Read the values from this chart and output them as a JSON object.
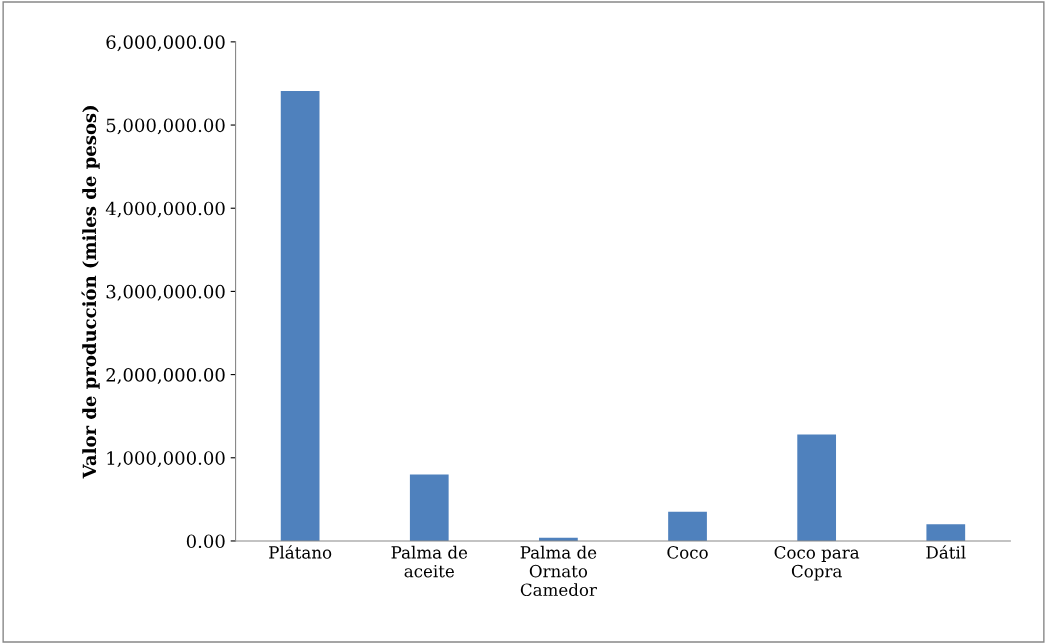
{
  "chart_data": {
    "type": "bar",
    "ylabel": "Valor de producción (miles de pesos)",
    "categories": [
      "Plátano",
      "Palma de\naceite",
      "Palma de\nOrnato\nCamedor",
      "Coco",
      "Coco para\nCopra",
      "Dátil"
    ],
    "values": [
      5410000,
      800000,
      40000,
      350000,
      1280000,
      200000
    ],
    "color": "#4f81bd",
    "ylim": [
      0,
      6000000
    ],
    "yticks": [
      {
        "value": 0,
        "label": "0.00"
      },
      {
        "value": 1000000,
        "label": "1,000,000.00"
      },
      {
        "value": 2000000,
        "label": "2,000,000.00"
      },
      {
        "value": 3000000,
        "label": "3,000,000.00"
      },
      {
        "value": 4000000,
        "label": "4,000,000.00"
      },
      {
        "value": 5000000,
        "label": "5,000,000.00"
      },
      {
        "value": 6000000,
        "label": "6,000,000.00"
      }
    ],
    "grid": false
  }
}
